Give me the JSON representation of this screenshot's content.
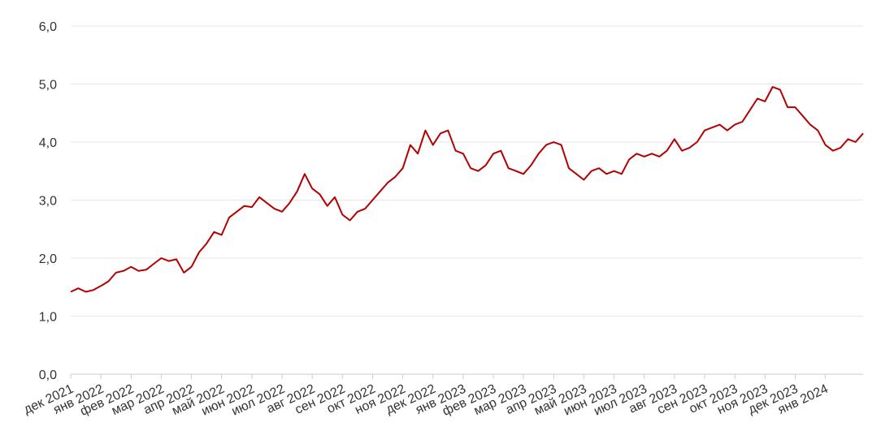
{
  "chart_data": {
    "type": "line",
    "categories": [
      "дек 2021",
      null,
      null,
      null,
      "янв 2022",
      null,
      null,
      null,
      "фев 2022",
      null,
      null,
      null,
      "мар 2022",
      null,
      null,
      null,
      "апр 2022",
      null,
      null,
      null,
      "май 2022",
      null,
      null,
      null,
      "июн 2022",
      null,
      null,
      null,
      "июл 2022",
      null,
      null,
      null,
      "авг 2022",
      null,
      null,
      null,
      "сен 2022",
      null,
      null,
      null,
      "окт 2022",
      null,
      null,
      null,
      "ноя 2022",
      null,
      null,
      null,
      "дек 2022",
      null,
      null,
      null,
      "янв 2023",
      null,
      null,
      null,
      "фев 2023",
      null,
      null,
      null,
      "мар 2023",
      null,
      null,
      null,
      "апр 2023",
      null,
      null,
      null,
      "май 2023",
      null,
      null,
      null,
      "июн 2023",
      null,
      null,
      null,
      "июл 2023",
      null,
      null,
      null,
      "авг 2023",
      null,
      null,
      null,
      "сен 2023",
      null,
      null,
      null,
      "окт 2023",
      null,
      null,
      null,
      "ноя 2023",
      null,
      null,
      null,
      "дек 2023",
      null,
      null,
      null,
      "янв 2024",
      null,
      null,
      null,
      null,
      null
    ],
    "values": [
      1.42,
      1.48,
      1.42,
      1.45,
      1.52,
      1.6,
      1.75,
      1.78,
      1.85,
      1.78,
      1.8,
      1.9,
      2.0,
      1.95,
      1.98,
      1.75,
      1.85,
      2.1,
      2.25,
      2.45,
      2.4,
      2.7,
      2.8,
      2.9,
      2.88,
      3.05,
      2.95,
      2.85,
      2.8,
      2.95,
      3.15,
      3.45,
      3.2,
      3.1,
      2.9,
      3.05,
      2.75,
      2.65,
      2.8,
      2.85,
      3.0,
      3.15,
      3.3,
      3.4,
      3.55,
      3.95,
      3.8,
      4.2,
      3.95,
      4.15,
      4.2,
      3.85,
      3.8,
      3.55,
      3.5,
      3.6,
      3.8,
      3.85,
      3.55,
      3.5,
      3.45,
      3.6,
      3.8,
      3.95,
      4.0,
      3.95,
      3.55,
      3.45,
      3.35,
      3.5,
      3.55,
      3.45,
      3.5,
      3.45,
      3.7,
      3.8,
      3.75,
      3.8,
      3.75,
      3.85,
      4.05,
      3.85,
      3.9,
      4.0,
      4.2,
      4.25,
      4.3,
      4.2,
      4.3,
      4.35,
      4.55,
      4.75,
      4.7,
      4.95,
      4.9,
      4.6,
      4.6,
      4.45,
      4.3,
      4.2,
      3.95,
      3.85,
      3.9,
      4.05,
      4.0,
      4.15
    ],
    "color": "#b30000",
    "ylim": [
      0,
      6
    ],
    "yticks": [
      {
        "value": 0,
        "label": "0,0"
      },
      {
        "value": 1,
        "label": "1,0"
      },
      {
        "value": 2,
        "label": "2,0"
      },
      {
        "value": 3,
        "label": "3,0"
      },
      {
        "value": 4,
        "label": "4,0"
      },
      {
        "value": 5,
        "label": "5,0"
      },
      {
        "value": 6,
        "label": "6,0"
      }
    ],
    "grid": true
  }
}
